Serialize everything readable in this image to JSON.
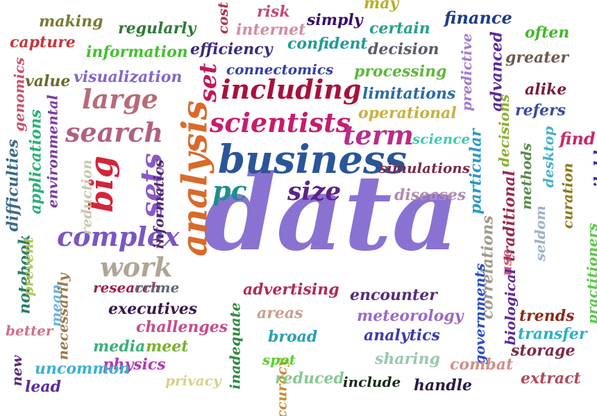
{
  "words": [
    {
      "text": "data",
      "color": "#8a72d2"
    },
    {
      "text": "business",
      "color": "#2b5599"
    },
    {
      "text": "analysis",
      "color": "#d96a2a"
    },
    {
      "text": "including",
      "color": "#a8113a"
    },
    {
      "text": "scientists",
      "color": "#c81c6a"
    },
    {
      "text": "big",
      "color": "#d4243a"
    },
    {
      "text": "sets",
      "color": "#8a58c9"
    },
    {
      "text": "large",
      "color": "#b86a7a"
    },
    {
      "text": "search",
      "color": "#b1607f"
    },
    {
      "text": "complex",
      "color": "#7a55c4"
    },
    {
      "text": "term",
      "color": "#bb2b8b"
    },
    {
      "text": "size",
      "color": "#5b2388"
    },
    {
      "text": "pc",
      "color": "#1d8f8f"
    },
    {
      "text": "work",
      "color": "#b0a595"
    },
    {
      "text": "set",
      "color": "#c4155a"
    },
    {
      "text": "making",
      "color": "#7a7a33"
    },
    {
      "text": "regularly",
      "color": "#2f7a35"
    },
    {
      "text": "cost",
      "color": "#b7304f"
    },
    {
      "text": "risk",
      "color": "#c5487a"
    },
    {
      "text": "simply",
      "color": "#3a0a6e"
    },
    {
      "text": "may",
      "color": "#b5b02a"
    },
    {
      "text": "finance",
      "color": "#1f3a8c"
    },
    {
      "text": "capture",
      "color": "#c8343a"
    },
    {
      "text": "internet",
      "color": "#d18ba4"
    },
    {
      "text": "certain",
      "color": "#26a08a"
    },
    {
      "text": "often",
      "color": "#41b82a"
    },
    {
      "text": "information",
      "color": "#45c030"
    },
    {
      "text": "efficiency",
      "color": "#3a2a7a"
    },
    {
      "text": "confident",
      "color": "#1f9a9a"
    },
    {
      "text": "decision",
      "color": "#5a5a6a"
    },
    {
      "text": "greater",
      "color": "#6a5a4a"
    },
    {
      "text": "value",
      "color": "#6a6a2a"
    },
    {
      "text": "visualization",
      "color": "#8266cc"
    },
    {
      "text": "connectomics",
      "color": "#3340a0"
    },
    {
      "text": "processing",
      "color": "#5cb83a"
    },
    {
      "text": "genomics",
      "color": "#c8506a"
    },
    {
      "text": "limitations",
      "color": "#2a6aa0"
    },
    {
      "text": "alike",
      "color": "#7a1a3a"
    },
    {
      "text": "predictive",
      "color": "#a37ad0"
    },
    {
      "text": "advanced",
      "color": "#5a2a9a"
    },
    {
      "text": "refers",
      "color": "#3a4aa0"
    },
    {
      "text": "operational",
      "color": "#c8b040"
    },
    {
      "text": "science",
      "color": "#45c8b0"
    },
    {
      "text": "find",
      "color": "#c82a6a"
    },
    {
      "text": "applications",
      "color": "#2ab07a"
    },
    {
      "text": "environmental",
      "color": "#7a3aa0"
    },
    {
      "text": "difficulties",
      "color": "#3a6a8a"
    },
    {
      "text": "reduction",
      "color": "#c8c8b0"
    },
    {
      "text": "informatics",
      "color": "#4a2a6a"
    },
    {
      "text": "notebook",
      "color": "#2a7a6a"
    },
    {
      "text": "prevent",
      "color": "#b0c85a"
    },
    {
      "text": "mean",
      "color": "#6ab0e0"
    },
    {
      "text": "necessarily",
      "color": "#9a7a4a"
    },
    {
      "text": "better",
      "color": "#d0708a"
    },
    {
      "text": "new",
      "color": "#5a2a7a"
    },
    {
      "text": "decisions",
      "color": "#8ab02a"
    },
    {
      "text": "particular",
      "color": "#2a9ac8"
    },
    {
      "text": "methods",
      "color": "#5a8a4a"
    },
    {
      "text": "desktop",
      "color": "#4ab0c8"
    },
    {
      "text": "available",
      "color": "#3a2aa0"
    },
    {
      "text": "traditional",
      "color": "#9a2a4a"
    },
    {
      "text": "curation",
      "color": "#8a7a1a"
    },
    {
      "text": "seldom",
      "color": "#a0b0c8"
    },
    {
      "text": "use",
      "color": "#c85a7a"
    },
    {
      "text": "practitioners",
      "color": "#5ac84a"
    },
    {
      "text": "correlations",
      "color": "#a09a8a"
    },
    {
      "text": "governments",
      "color": "#2a4ac8"
    },
    {
      "text": "biological",
      "color": "#5a2a9a"
    },
    {
      "text": "inadequate",
      "color": "#2a8a3a"
    },
    {
      "text": "accuracy",
      "color": "#c88a2a"
    },
    {
      "text": "simulations",
      "color": "#7a2a4a"
    },
    {
      "text": "diseases",
      "color": "#b08ab0"
    },
    {
      "text": "research",
      "color": "#a0204a"
    },
    {
      "text": "crime",
      "color": "#5a6a7a"
    },
    {
      "text": "advertising",
      "color": "#b02a5a"
    },
    {
      "text": "encounter",
      "color": "#5a2a7a"
    },
    {
      "text": "executives",
      "color": "#3a1a4a"
    },
    {
      "text": "trends",
      "color": "#8a2a1a"
    },
    {
      "text": "areas",
      "color": "#c8a090"
    },
    {
      "text": "meteorology",
      "color": "#9a6ac8"
    },
    {
      "text": "challenges",
      "color": "#c84a8a"
    },
    {
      "text": "transfer",
      "color": "#2ab0c8"
    },
    {
      "text": "broad",
      "color": "#2aa0b0"
    },
    {
      "text": "analytics",
      "color": "#3a3ab0"
    },
    {
      "text": "media",
      "color": "#3ab07a"
    },
    {
      "text": "meet",
      "color": "#7ab02a"
    },
    {
      "text": "storage",
      "color": "#7a2a4a"
    },
    {
      "text": "physics",
      "color": "#b03ab0"
    },
    {
      "text": "sharing",
      "color": "#9ac8b0"
    },
    {
      "text": "combat",
      "color": "#d0908a"
    },
    {
      "text": "uncommon",
      "color": "#3ab0d0"
    },
    {
      "text": "spot",
      "color": "#5ad02a"
    },
    {
      "text": "extract",
      "color": "#b04a5a"
    },
    {
      "text": "privacy",
      "color": "#d8d08a"
    },
    {
      "text": "reduced",
      "color": "#8ac890"
    },
    {
      "text": "include",
      "color": "#1a2a1a"
    },
    {
      "text": "handle",
      "color": "#2a1a4a"
    },
    {
      "text": "lead",
      "color": "#5a2aa0"
    }
  ]
}
